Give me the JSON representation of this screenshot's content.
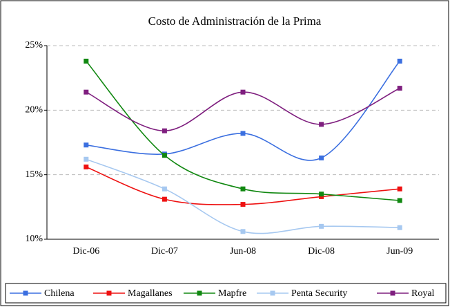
{
  "chart_data": {
    "type": "line",
    "title": "Costo de Administración de la Prima",
    "categories": [
      "Dic-06",
      "Dic-07",
      "Jun-08",
      "Dic-08",
      "Jun-09"
    ],
    "series": [
      {
        "name": "Chilena",
        "color": "#3b6fe0",
        "values": [
          17.3,
          16.6,
          18.2,
          16.3,
          23.8
        ]
      },
      {
        "name": "Magallanes",
        "color": "#ee1111",
        "values": [
          15.6,
          13.1,
          12.7,
          13.3,
          13.9
        ]
      },
      {
        "name": "Mapfre",
        "color": "#118811",
        "values": [
          23.8,
          16.5,
          13.9,
          13.5,
          13.0
        ]
      },
      {
        "name": "Penta Security",
        "color": "#a6c8f0",
        "values": [
          16.2,
          13.9,
          10.6,
          11.0,
          10.9
        ]
      },
      {
        "name": "Royal",
        "color": "#7f1f7f",
        "values": [
          21.4,
          18.4,
          21.4,
          18.9,
          21.7
        ]
      }
    ],
    "ylim": [
      10,
      25
    ],
    "yticks": [
      {
        "value": 10,
        "label": "10%"
      },
      {
        "value": 15,
        "label": "15%"
      },
      {
        "value": 20,
        "label": "20%"
      },
      {
        "value": 25,
        "label": "25%"
      }
    ],
    "grid": true,
    "smooth": true,
    "legend": "bottom"
  }
}
